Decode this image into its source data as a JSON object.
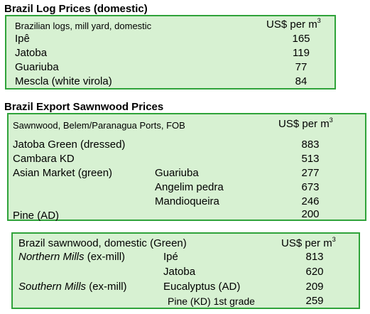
{
  "log": {
    "heading": "Brazil Log Prices (domestic)",
    "subtitle": "Brazilian logs, mill yard, domestic",
    "unit_label": "US$ per m",
    "unit_exp": "3",
    "rows": [
      {
        "name": "Ipê",
        "price": "165"
      },
      {
        "name": "Jatoba",
        "price": "119"
      },
      {
        "name": "Guariuba",
        "price": "77"
      },
      {
        "name": "Mescla (white virola)",
        "price": "84"
      }
    ]
  },
  "export": {
    "heading": "Brazil Export Sawnwood Prices",
    "subtitle": "Sawnwood, Belem/Paranagua Ports, FOB",
    "unit_label": "US$ per m",
    "unit_exp": "3",
    "rows": [
      {
        "name": "Jatoba Green (dressed)",
        "sub": "",
        "price": "883"
      },
      {
        "name": "Cambara KD",
        "sub": "",
        "price": "513"
      },
      {
        "name": "Asian Market (green)",
        "sub": "Guariuba",
        "price": "277"
      },
      {
        "name": "",
        "sub": "Angelim pedra",
        "price": "673"
      },
      {
        "name": "",
        "sub": "Mandioqueira",
        "price": "246"
      },
      {
        "name": "Pine (AD)",
        "sub": "",
        "price": "200"
      }
    ]
  },
  "domestic": {
    "subtitle": "Brazil sawnwood, domestic (Green)",
    "unit_label": "US$ per m",
    "unit_exp": "3",
    "rows": [
      {
        "name": "Northern Mills",
        "suffix": " (ex-mill)",
        "sub": "Ipé",
        "price": "813"
      },
      {
        "name": "",
        "suffix": "",
        "sub": "Jatoba",
        "price": "620"
      },
      {
        "name": "Southern Mills",
        "suffix": " (ex-mill)",
        "sub": "Eucalyptus (AD)",
        "price": "209"
      },
      {
        "name": "",
        "suffix": "",
        "sub": "Pine (KD) 1st grade",
        "price": "259"
      }
    ]
  },
  "colors": {
    "box_fill": "#d7f1d2",
    "box_border": "#2fa33a"
  }
}
